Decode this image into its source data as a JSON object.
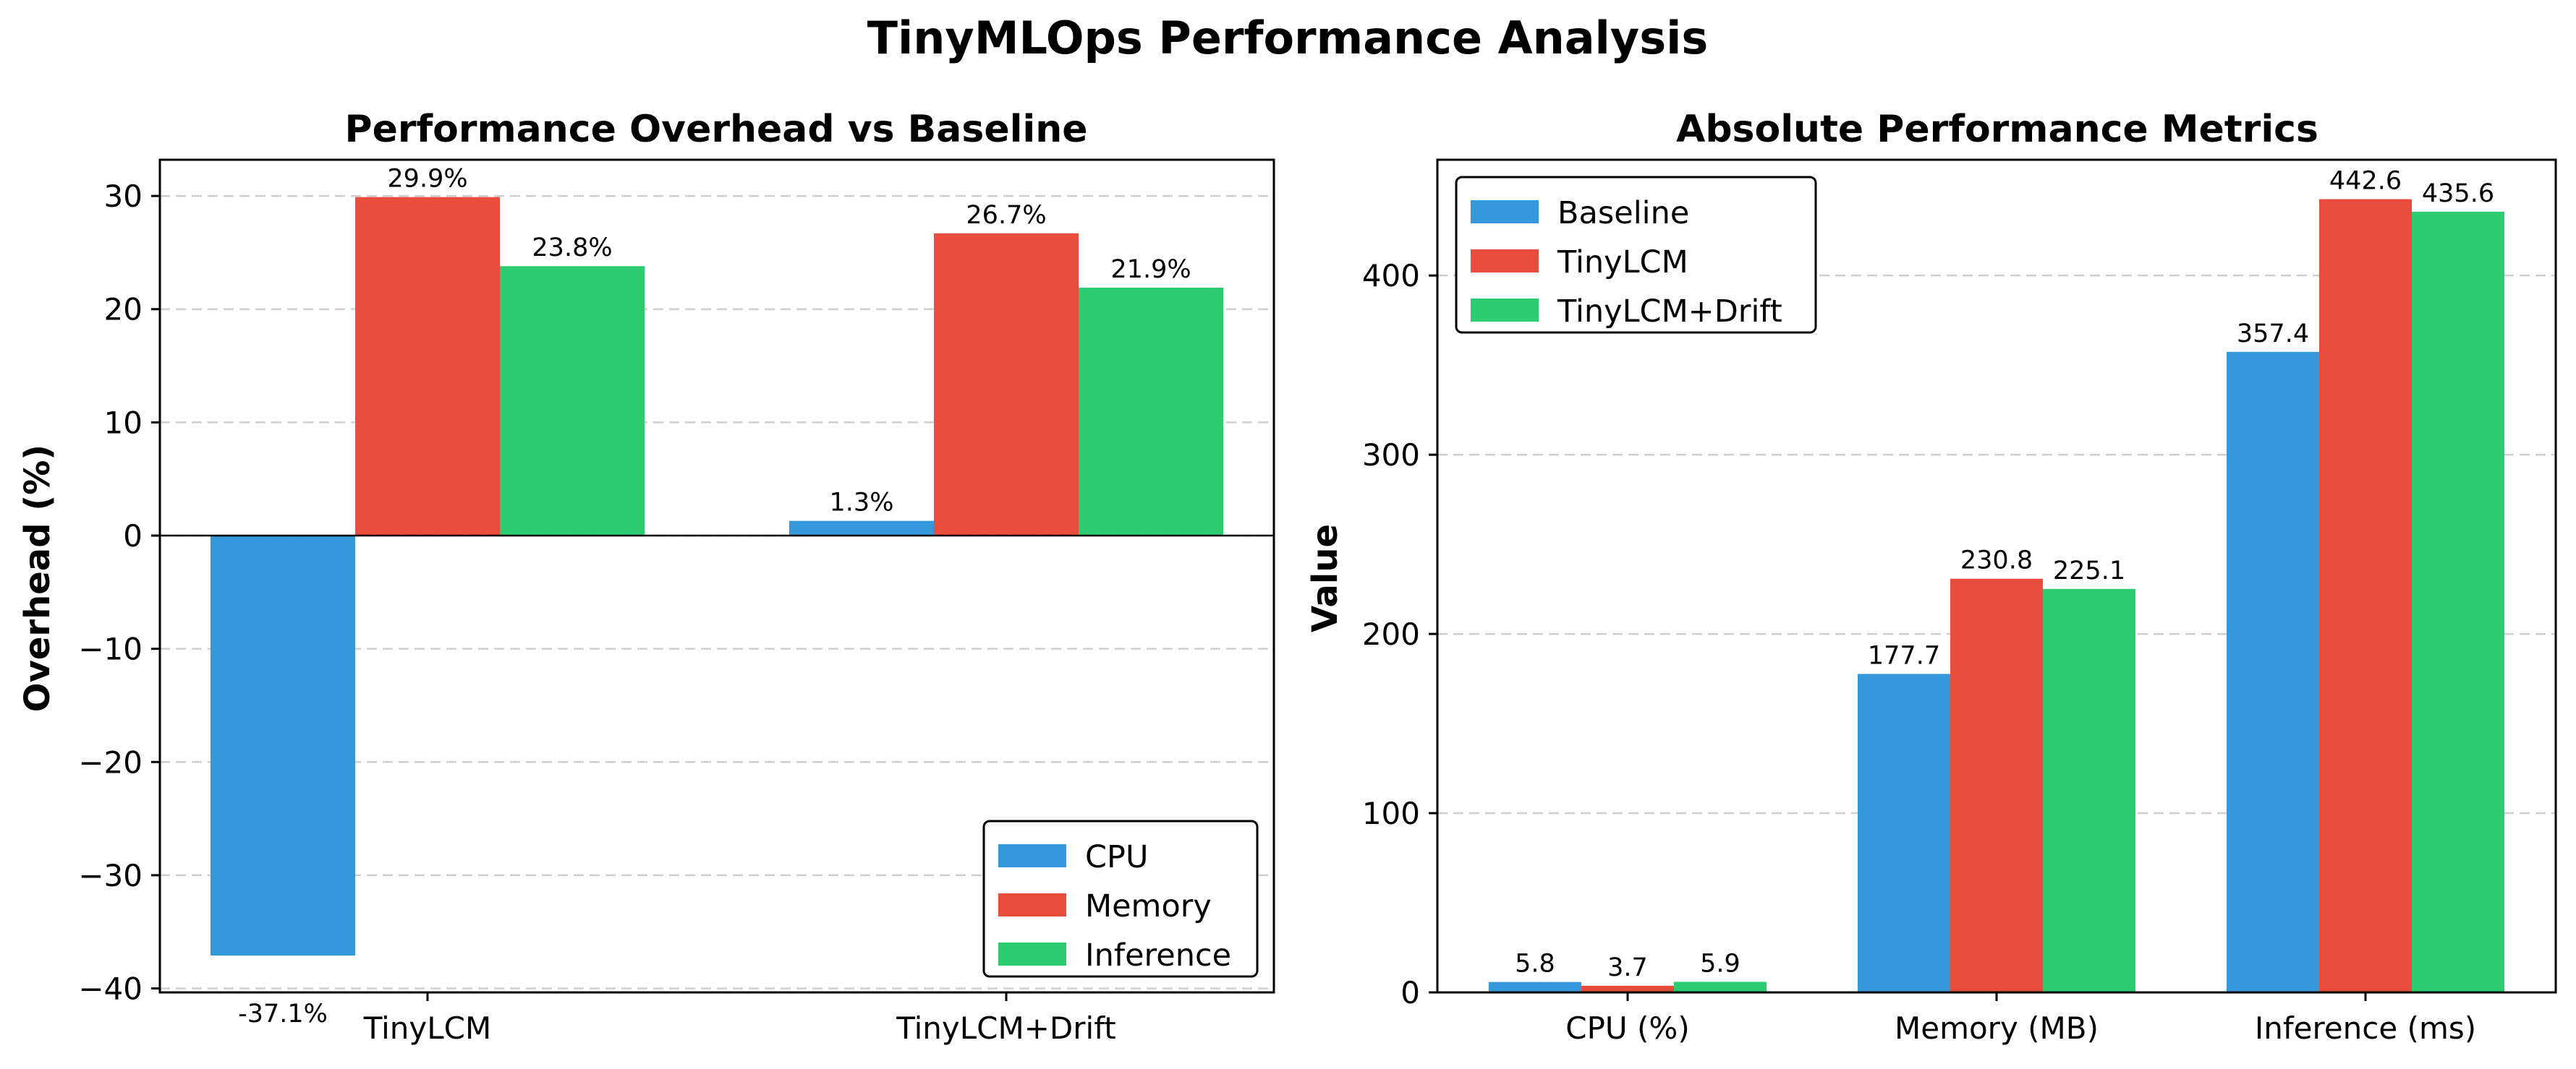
{
  "figure": {
    "title": "TinyMLOps Performance Analysis"
  },
  "colors": {
    "CPU": "#3498db",
    "Memory": "#e74c3c",
    "Inference": "#2ecc71"
  },
  "chart_data": [
    {
      "type": "bar",
      "title": "Performance Overhead vs Baseline",
      "xlabel": "",
      "ylabel": "Overhead (%)",
      "categories": [
        "TinyLCM",
        "TinyLCM+Drift"
      ],
      "series": [
        {
          "name": "CPU",
          "values": [
            -37.1,
            1.3
          ],
          "labels": [
            "-37.1%",
            "1.3%"
          ]
        },
        {
          "name": "Memory",
          "values": [
            29.9,
            26.7
          ],
          "labels": [
            "29.9%",
            "26.7%"
          ]
        },
        {
          "name": "Inference",
          "values": [
            23.8,
            21.9
          ],
          "labels": [
            "23.8%",
            "21.9%"
          ]
        }
      ],
      "ylim": [
        -40.35,
        33.2
      ],
      "yticks": [
        -40,
        -30,
        -20,
        -10,
        0,
        10,
        20,
        30
      ],
      "ytick_labels": [
        "−40",
        "−30",
        "−20",
        "−10",
        "0",
        "10",
        "20",
        "30"
      ],
      "grid": "y",
      "legend": "lower-right"
    },
    {
      "type": "bar",
      "title": "Absolute Performance Metrics",
      "xlabel": "",
      "ylabel": "Value",
      "categories": [
        "CPU (%)",
        "Memory (MB)",
        "Inference (ms)"
      ],
      "series": [
        {
          "name": "Baseline",
          "values": [
            5.8,
            177.7,
            357.4
          ],
          "labels": [
            "5.8",
            "177.7",
            "357.4"
          ]
        },
        {
          "name": "TinyLCM",
          "values": [
            3.7,
            230.8,
            442.6
          ],
          "labels": [
            "3.7",
            "230.8",
            "442.6"
          ]
        },
        {
          "name": "TinyLCM+Drift",
          "values": [
            5.9,
            225.1,
            435.6
          ],
          "labels": [
            "5.9",
            "225.1",
            "435.6"
          ]
        }
      ],
      "ylim": [
        0,
        464.6
      ],
      "yticks": [
        0,
        100,
        200,
        300,
        400
      ],
      "ytick_labels": [
        "0",
        "100",
        "200",
        "300",
        "400"
      ],
      "grid": "y",
      "legend": "upper-left"
    }
  ]
}
